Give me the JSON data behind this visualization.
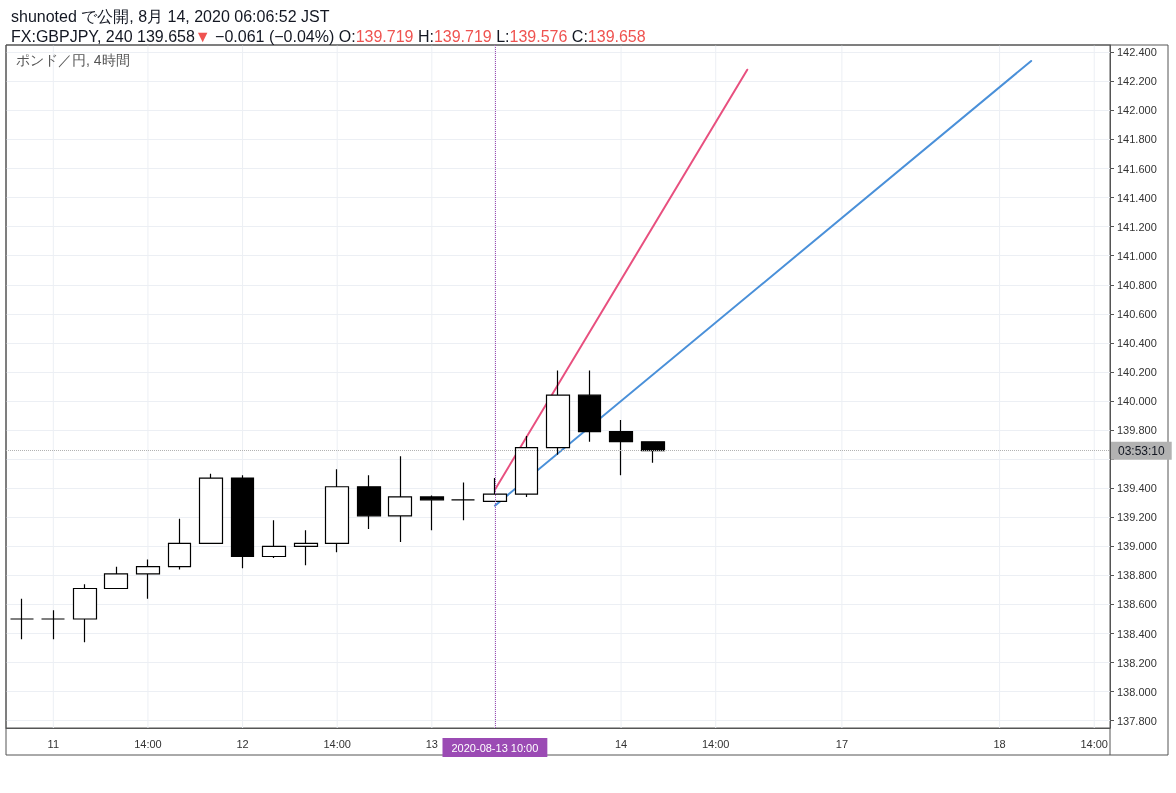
{
  "chart_data": {
    "type": "candlestick",
    "title": "shunoted で公開, 8月 14, 2020 06:06:52 JST",
    "subtitle": "FX:GBPJPY, 240 139.658▼ −0.061 (−0.04%) O:139.719 H:139.719 L:139.576 C:139.658",
    "annotations": [
      "ポンド／円, 4時間",
      "03:53:10"
    ],
    "categories": [
      null,
      "11",
      null,
      null,
      "14:00",
      null,
      null,
      "12",
      null,
      null,
      "14:00",
      null,
      null,
      "13",
      null,
      "2020-08-13 10:00",
      null,
      null,
      null,
      "14",
      null,
      null,
      "14:00",
      null,
      null,
      null,
      "17",
      null,
      null,
      null,
      null,
      "18",
      null,
      null,
      "14:00"
    ],
    "color": "#000000",
    "ohlc": [
      [
        138.5,
        138.64,
        138.36,
        138.5
      ],
      [
        138.5,
        138.56,
        138.36,
        138.5
      ],
      [
        138.5,
        138.74,
        138.34,
        138.71
      ],
      [
        138.71,
        138.86,
        138.71,
        138.81
      ],
      [
        138.81,
        138.91,
        138.64,
        138.86
      ],
      [
        138.86,
        139.19,
        138.84,
        139.02
      ],
      [
        139.02,
        139.5,
        139.02,
        139.47
      ],
      [
        139.47,
        139.49,
        138.85,
        138.93
      ],
      [
        138.93,
        139.18,
        138.92,
        139.0
      ],
      [
        139.0,
        139.11,
        138.87,
        139.02
      ],
      [
        139.02,
        139.53,
        138.96,
        139.41
      ],
      [
        139.41,
        139.49,
        139.12,
        139.21
      ],
      [
        139.21,
        139.62,
        139.03,
        139.34
      ],
      [
        139.34,
        139.35,
        139.11,
        139.32
      ],
      [
        139.32,
        139.44,
        139.18,
        139.32
      ],
      [
        139.31,
        139.47,
        139.31,
        139.36
      ],
      [
        139.36,
        139.76,
        139.34,
        139.68
      ],
      [
        139.68,
        140.21,
        139.63,
        140.04
      ],
      [
        140.04,
        140.21,
        139.72,
        139.79
      ],
      [
        139.79,
        139.87,
        139.49,
        139.72
      ],
      [
        139.719,
        139.719,
        139.576,
        139.658
      ],
      null,
      null,
      null,
      null,
      null,
      null,
      null,
      null,
      null,
      null,
      null,
      null,
      null,
      null
    ],
    "series": [
      {
        "type": "line",
        "color": "#e8507f",
        "values": [
          null,
          null,
          null,
          null,
          null,
          null,
          null,
          null,
          null,
          null,
          null,
          null,
          null,
          null,
          null,
          139.39,
          null,
          null,
          null,
          null,
          null,
          null,
          null,
          142.28,
          null,
          null,
          null,
          null,
          null,
          null,
          null,
          null,
          null,
          null,
          null
        ]
      },
      {
        "type": "line",
        "color": "#4a90d9",
        "values": [
          null,
          null,
          null,
          null,
          null,
          null,
          null,
          null,
          null,
          null,
          null,
          null,
          null,
          null,
          null,
          139.28,
          null,
          null,
          null,
          null,
          null,
          null,
          null,
          null,
          null,
          null,
          null,
          null,
          null,
          null,
          null,
          null,
          142.34,
          null,
          null
        ]
      }
    ],
    "ylim": [
      137.75,
      142.45
    ],
    "yticks": [
      {
        "value": 137.8,
        "label": "137.800"
      },
      {
        "value": 138.0,
        "label": "138.000"
      },
      {
        "value": 138.2,
        "label": "138.200"
      },
      {
        "value": 138.4,
        "label": "138.400"
      },
      {
        "value": 138.6,
        "label": "138.600"
      },
      {
        "value": 138.8,
        "label": "138.800"
      },
      {
        "value": 139.0,
        "label": "139.000"
      },
      {
        "value": 139.2,
        "label": "139.200"
      },
      {
        "value": 139.4,
        "label": "139.400"
      },
      {
        "value": 139.6,
        "label": null
      },
      {
        "value": 139.8,
        "label": "139.800"
      },
      {
        "value": 140.0,
        "label": "140.000"
      },
      {
        "value": 140.2,
        "label": "140.200"
      },
      {
        "value": 140.4,
        "label": "140.400"
      },
      {
        "value": 140.6,
        "label": "140.600"
      },
      {
        "value": 140.8,
        "label": "140.800"
      },
      {
        "value": 141.0,
        "label": "141.000"
      },
      {
        "value": 141.2,
        "label": "141.200"
      },
      {
        "value": 141.4,
        "label": "141.400"
      },
      {
        "value": 141.6,
        "label": "141.600"
      },
      {
        "value": 141.8,
        "label": "141.800"
      },
      {
        "value": 142.0,
        "label": "142.000"
      },
      {
        "value": 142.2,
        "label": "142.200"
      },
      {
        "value": 142.4,
        "label": "142.400"
      }
    ],
    "ref_lines": [
      {
        "axis": "x",
        "value": "2020-08-13 10:00",
        "color": "#9b4bb4",
        "line_style": "dotted"
      },
      {
        "axis": "y",
        "value": 139.658,
        "color": "#b2b2b2",
        "line_style": "dotted"
      }
    ],
    "grid": true
  }
}
